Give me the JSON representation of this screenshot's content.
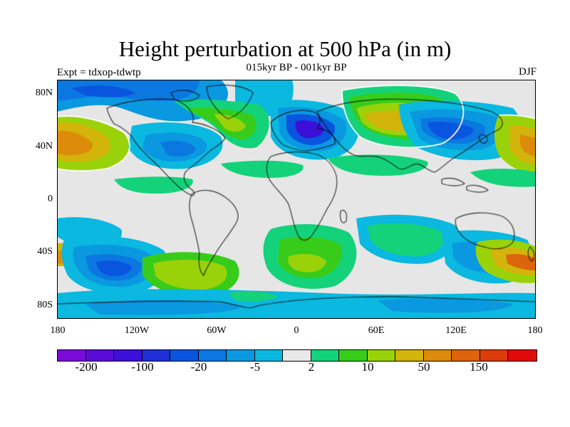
{
  "title": "Height perturbation at 500 hPa (in m)",
  "subtitle": "015kyr BP - 001kyr BP",
  "left_label": "Expt = tdxop-tdwtp",
  "right_label": "DJF",
  "lat_labels": [
    "80N",
    "40N",
    "0",
    "40S",
    "80S"
  ],
  "lon_labels": [
    "180",
    "120W",
    "60W",
    "0",
    "60E",
    "120E",
    "180"
  ],
  "colorbar": {
    "colors": [
      "#7a0ad8",
      "#5a0ad8",
      "#3c10d8",
      "#2030d8",
      "#0a55e0",
      "#0a78e0",
      "#0a98e0",
      "#0ab8e0",
      "#e8e8e8",
      "#14d27a",
      "#37cc1a",
      "#9ad20a",
      "#d2b40a",
      "#dc8c0a",
      "#dc640a",
      "#dc3c0a",
      "#e00a0a"
    ],
    "labels": [
      "-200",
      "-100",
      "-20",
      "-5",
      "2",
      "10",
      "50",
      "150"
    ]
  },
  "icons": {
    "map": "world-map-coastlines"
  }
}
